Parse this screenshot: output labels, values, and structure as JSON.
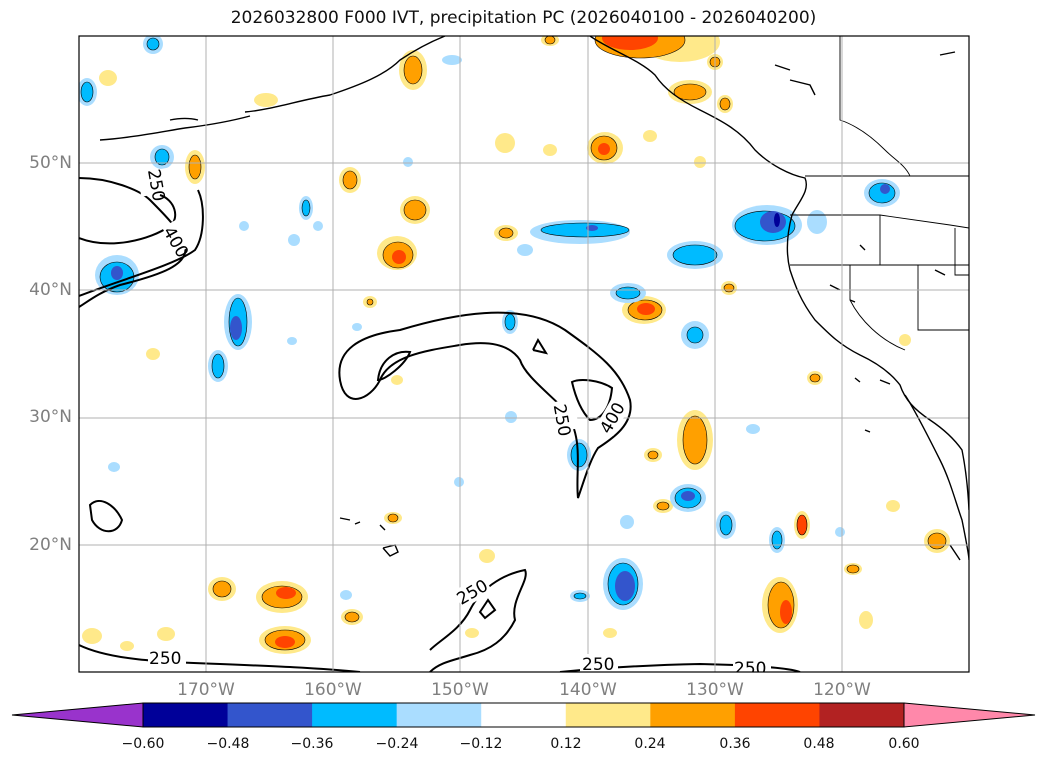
{
  "title": "2026032800 F000 IVT, precipitation PC (2026040100 - 2026040200)",
  "map": {
    "lat_labels": [
      "50°N",
      "40°N",
      "30°N",
      "20°N"
    ],
    "lon_labels": [
      "170°W",
      "160°W",
      "150°W",
      "140°W",
      "130°W",
      "120°W"
    ],
    "contour_labels": [
      {
        "text": "250"
      },
      {
        "text": "400"
      },
      {
        "text": "250"
      },
      {
        "text": "400"
      },
      {
        "text": "250"
      },
      {
        "text": "250"
      },
      {
        "text": "250"
      },
      {
        "text": "250"
      }
    ]
  },
  "colorbar": {
    "ticks": [
      "−0.60",
      "−0.48",
      "−0.36",
      "−0.24",
      "−0.12",
      "0.12",
      "0.24",
      "0.36",
      "0.48",
      "0.60"
    ],
    "colors": [
      "#9933cc",
      "#000099",
      "#3355cc",
      "#00bbff",
      "#aaddff",
      "#ffffff",
      "#ffe98a",
      "#ffa000",
      "#ff4400",
      "#b22222",
      "#ff88aa"
    ]
  },
  "palette": {
    "light_blue": "#aaddff",
    "cyan": "#00bbff",
    "royal": "#3355cc",
    "navy": "#000099",
    "yellow": "#ffe98a",
    "orange": "#ffa000",
    "red": "#ff4400",
    "dark_red": "#b22222"
  }
}
